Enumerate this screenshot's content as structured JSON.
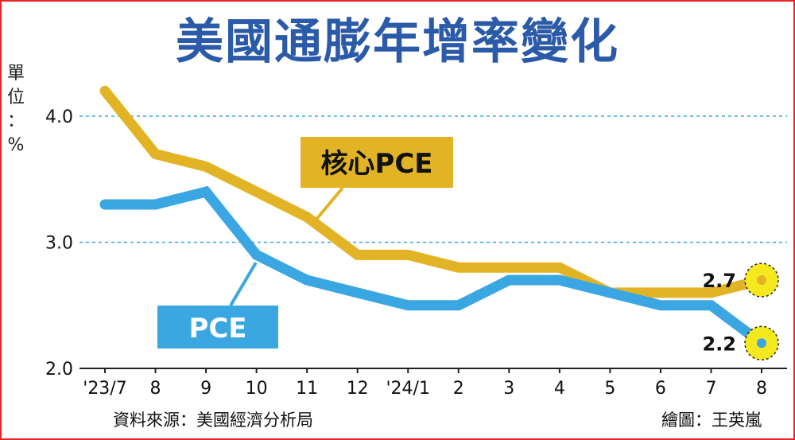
{
  "title": "美國通膨年增率變化",
  "unit_label": "單位：%",
  "source": "資料來源：美國經濟分析局",
  "credit": "繪圖：王英嵐",
  "colors": {
    "core_pce": "#e2b425",
    "pce": "#3aa6e2",
    "title": "#2a5aa8",
    "highlight": "#f4e81e",
    "frame": "#e8232a"
  },
  "chart_data": {
    "type": "line",
    "categories": [
      "'23/7",
      "8",
      "9",
      "10",
      "11",
      "12",
      "'24/1",
      "2",
      "3",
      "4",
      "5",
      "6",
      "7",
      "8"
    ],
    "ylim": [
      2.0,
      4.0
    ],
    "yticks": [
      "2.0",
      "3.0",
      "4.0"
    ],
    "grid": "dashed horizontal at 3.0 and 4.0",
    "series": [
      {
        "name": "核心PCE",
        "values": [
          4.2,
          3.7,
          3.6,
          3.4,
          3.2,
          2.9,
          2.9,
          2.8,
          2.8,
          2.8,
          2.6,
          2.6,
          2.6,
          2.7
        ]
      },
      {
        "name": "PCE",
        "values": [
          3.3,
          3.3,
          3.4,
          2.9,
          2.7,
          2.6,
          2.5,
          2.5,
          2.7,
          2.7,
          2.6,
          2.5,
          2.5,
          2.2
        ]
      }
    ],
    "data_labels": [
      {
        "series": "核心PCE",
        "value": "2.7"
      },
      {
        "series": "PCE",
        "value": "2.2"
      }
    ]
  }
}
